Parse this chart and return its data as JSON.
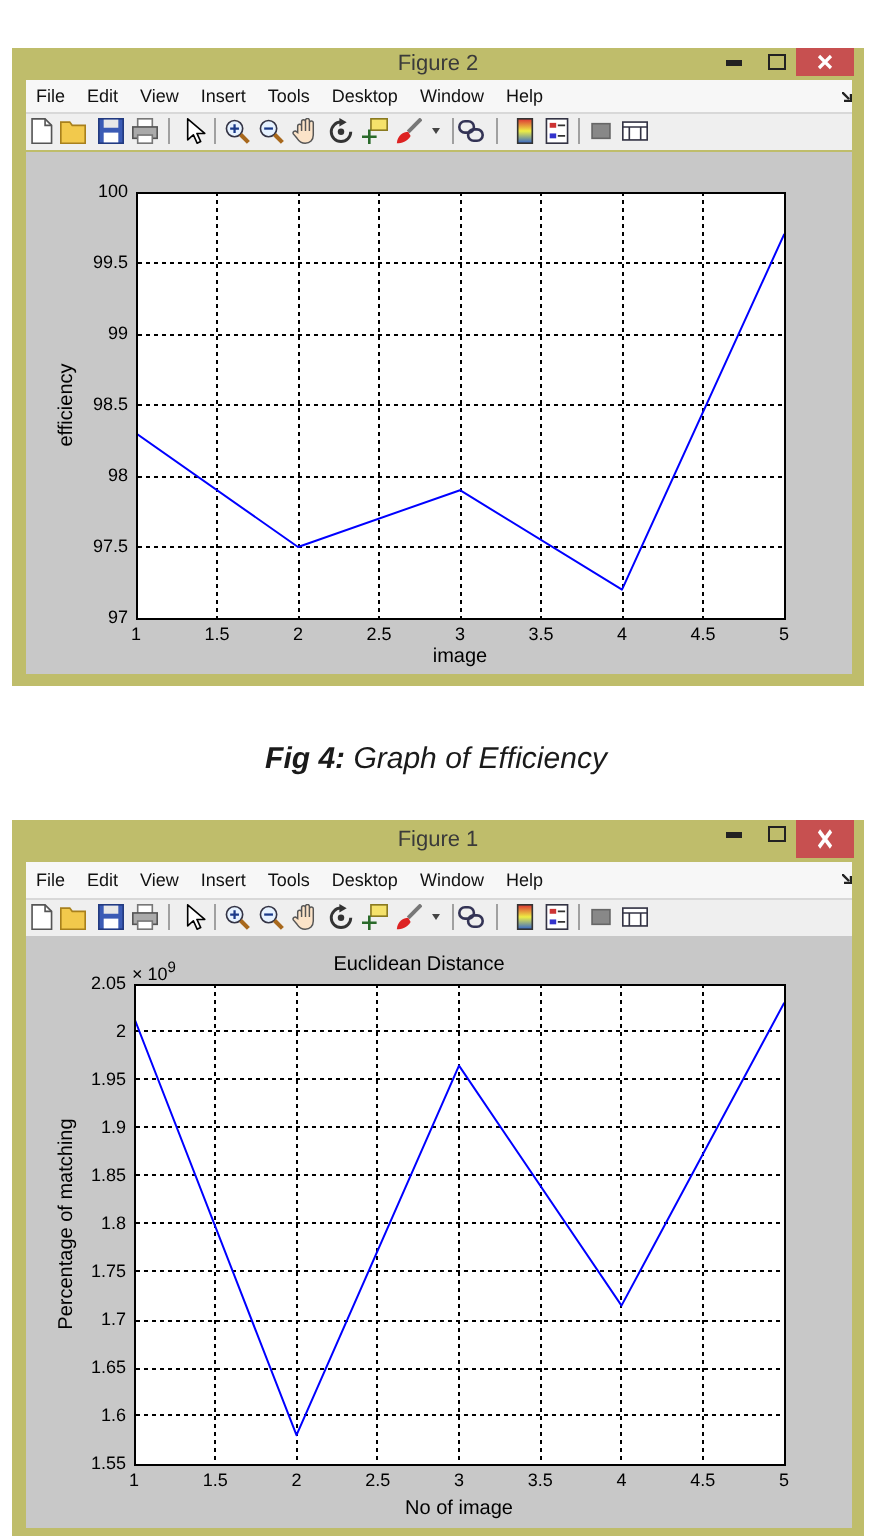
{
  "chart_data": [
    {
      "type": "line",
      "x": [
        1,
        2,
        3,
        4,
        5
      ],
      "series": [
        {
          "color": "#0000ff",
          "values": [
            98.3,
            97.5,
            97.9,
            97.2,
            99.7
          ]
        }
      ],
      "xlim": [
        1,
        5
      ],
      "xticks": [
        1,
        1.5,
        2,
        2.5,
        3,
        3.5,
        4,
        4.5,
        5
      ],
      "ylim": [
        97,
        100
      ],
      "yticks": [
        97,
        97.5,
        98,
        98.5,
        99,
        99.5,
        100
      ],
      "xlabel": "image",
      "ylabel": "efficiency",
      "grid": true,
      "marker": "none",
      "line_style": "solid",
      "annotations": [
        "Figure 2",
        "File",
        "Edit",
        "View",
        "Insert",
        "Tools",
        "Desktop",
        "Window",
        "Help",
        "Fig 4: Graph of Efficiency"
      ]
    },
    {
      "type": "line",
      "title": "Euclidean Distance",
      "x": [
        1,
        2,
        3,
        4,
        5
      ],
      "series": [
        {
          "color": "#0000ff",
          "values": [
            2.015,
            1.58,
            1.965,
            1.715,
            2.03
          ]
        }
      ],
      "xlim": [
        1,
        5
      ],
      "xticks": [
        1,
        1.5,
        2,
        2.5,
        3,
        3.5,
        4,
        4.5,
        5
      ],
      "ylim": [
        1.55,
        2.05
      ],
      "yticks": [
        1.55,
        1.6,
        1.65,
        1.7,
        1.75,
        1.8,
        1.85,
        1.9,
        1.95,
        2,
        2.05
      ],
      "xlabel": "No of image",
      "ylabel": "Percentage of matching",
      "grid": true,
      "marker": "none",
      "line_style": "solid",
      "annotations": [
        "Figure 1",
        "File",
        "Edit",
        "View",
        "Insert",
        "Tools",
        "Desktop",
        "Window",
        "Help",
        "× 10$^{9}$"
      ]
    }
  ]
}
